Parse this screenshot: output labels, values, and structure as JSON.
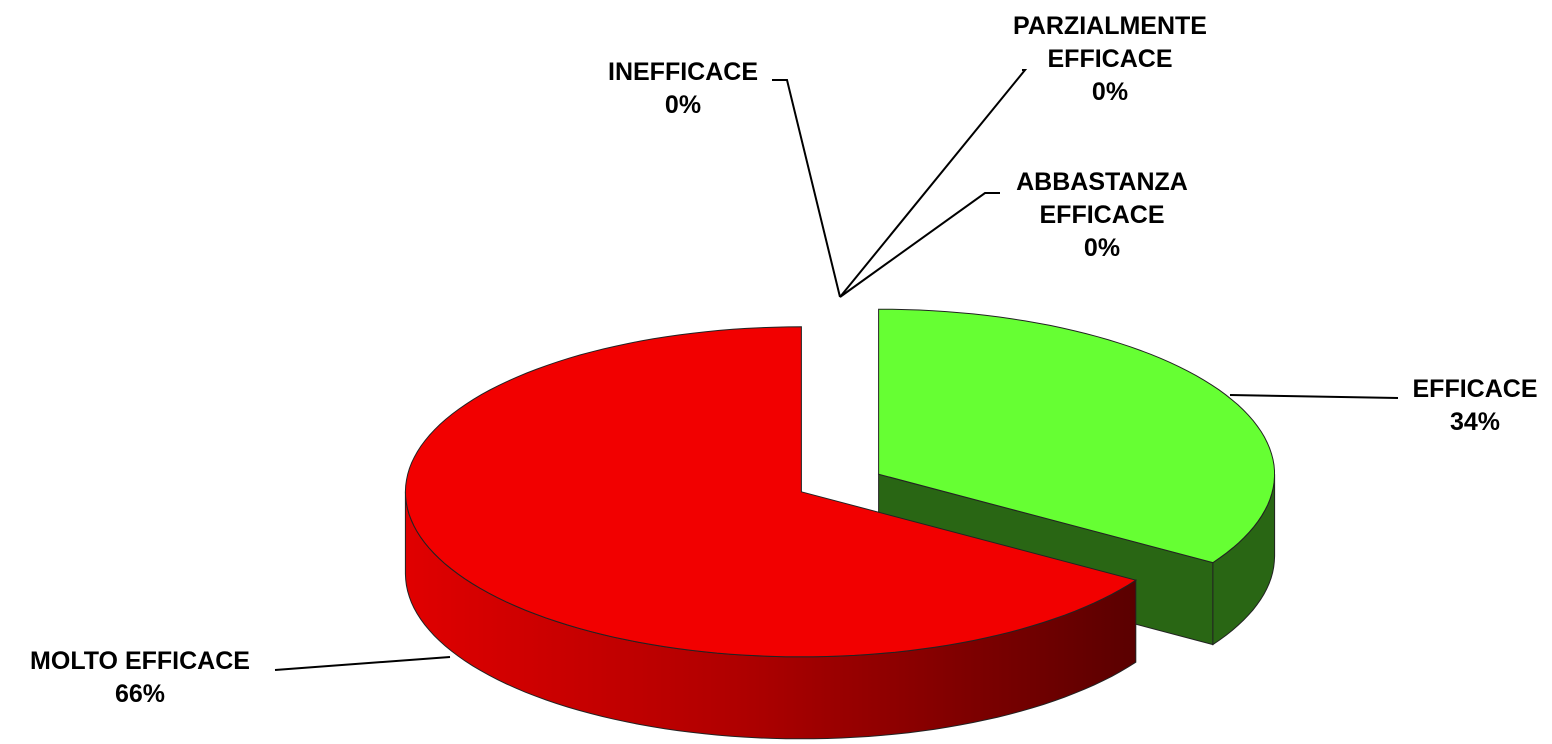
{
  "chart_data": {
    "type": "pie",
    "categories": [
      "INEFFICACE",
      "PARZIALMENTE EFFICACE",
      "ABBASTANZA EFFICACE",
      "EFFICACE",
      "MOLTO EFFICACE"
    ],
    "values": [
      0,
      0,
      0,
      34,
      66
    ],
    "value_labels": [
      "0%",
      "0%",
      "0%",
      "34%",
      "66%"
    ],
    "colors": [
      "#3366cc",
      "#ff9900",
      "#ffff00",
      "#66ff33",
      "#f20000"
    ]
  }
}
